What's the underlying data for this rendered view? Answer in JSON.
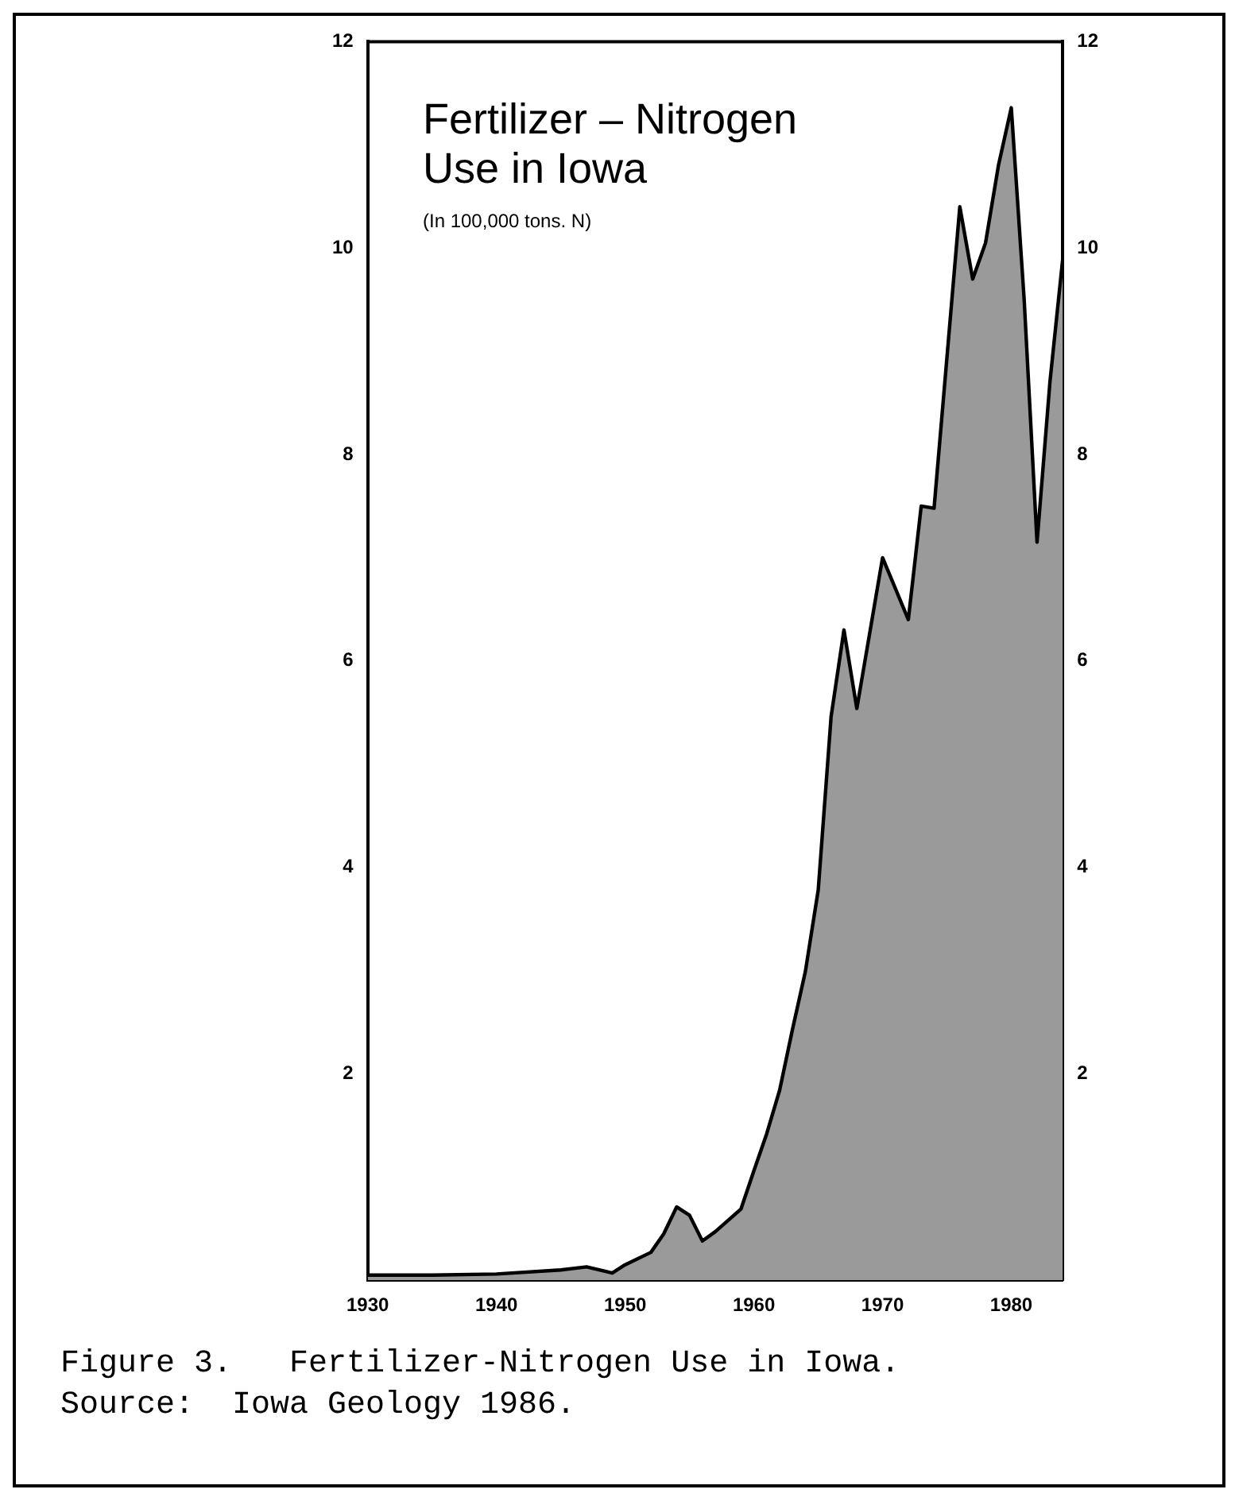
{
  "chart_data": {
    "type": "area",
    "title": "Fertilizer – Nitrogen Use in Iowa",
    "subtitle": "(In 100,000 tons. N)",
    "annotations": [
      "Figure 3.   Fertilizer-Nitrogen Use in Iowa.",
      "Source:  Iowa Geology 1986."
    ],
    "x": [
      1930,
      1935,
      1940,
      1945,
      1947,
      1949,
      1950,
      1952,
      1953,
      1954,
      1955,
      1956,
      1957,
      1959,
      1960,
      1961,
      1962,
      1963,
      1964,
      1965,
      1966,
      1967,
      1968,
      1970,
      1972,
      1973,
      1974,
      1976,
      1977,
      1978,
      1979,
      1980,
      1981,
      1982,
      1983,
      1984
    ],
    "series": [
      {
        "color": "#9a9a9a",
        "values": [
          0.05,
          0.05,
          0.06,
          0.1,
          0.13,
          0.07,
          0.15,
          0.27,
          0.45,
          0.71,
          0.63,
          0.38,
          0.47,
          0.69,
          1.06,
          1.42,
          1.84,
          2.43,
          2.99,
          3.78,
          5.46,
          6.3,
          5.54,
          7.0,
          6.4,
          7.5,
          7.48,
          10.4,
          9.7,
          10.05,
          10.8,
          11.36,
          9.5,
          7.15,
          8.7,
          9.9
        ]
      }
    ],
    "xlim": [
      1930,
      1984
    ],
    "xticks": [
      1930,
      1940,
      1950,
      1960,
      1970,
      1980
    ],
    "ylim": [
      0,
      12
    ],
    "yticks": [
      2,
      4,
      6,
      8,
      10,
      12
    ],
    "y2lim": [
      0,
      12
    ],
    "y2ticks": [
      2,
      4,
      6,
      8,
      10,
      12
    ],
    "grid": false,
    "legend": false,
    "marker": "none",
    "line_style": "solid"
  }
}
